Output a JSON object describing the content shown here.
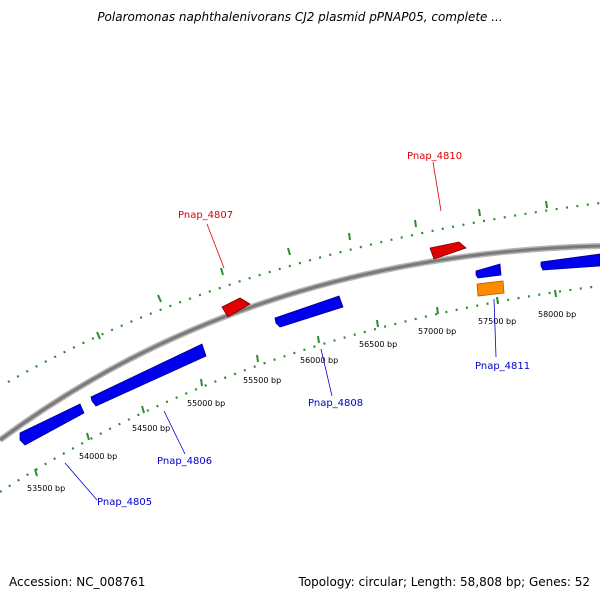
{
  "title": "Polaromonas naphthalenivorans CJ2 plasmid pPNAP05, complete ...",
  "footer": {
    "accession": "Accession: NC_008761",
    "summary": "Topology: circular; Length: 58,808 bp; Genes: 52"
  },
  "colors": {
    "backbone": "#8a8a8a",
    "tick": "#2e8b2e",
    "forward_gene": "#e00000",
    "reverse_gene": "#0000ee",
    "other_gene": "#ff8c00"
  },
  "bp_labels": [
    "53500 bp",
    "54000 bp",
    "54500 bp",
    "55000 bp",
    "55500 bp",
    "56000 bp",
    "56500 bp",
    "57000 bp",
    "57500 bp",
    "58000 bp"
  ],
  "gene_labels": [
    {
      "name": "Pnap_4805",
      "strand": "reverse"
    },
    {
      "name": "Pnap_4806",
      "strand": "reverse"
    },
    {
      "name": "Pnap_4807",
      "strand": "forward"
    },
    {
      "name": "Pnap_4808",
      "strand": "reverse"
    },
    {
      "name": "Pnap_4810",
      "strand": "forward"
    },
    {
      "name": "Pnap_4811",
      "strand": "reverse"
    }
  ]
}
